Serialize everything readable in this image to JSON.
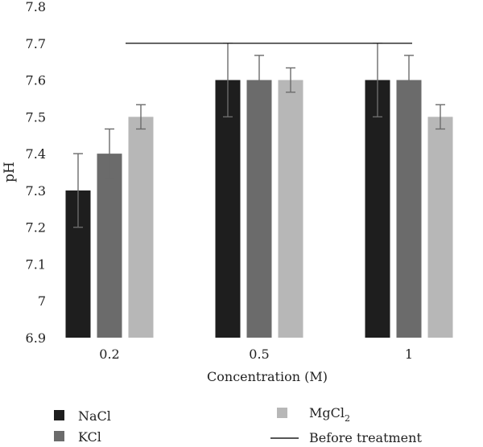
{
  "chart_data": {
    "type": "bar",
    "categories": [
      "0.2",
      "0.5",
      "1"
    ],
    "xlabel": "Concentration (M)",
    "ylabel": "pH",
    "ylim": [
      6.9,
      7.8
    ],
    "yticks": [
      "6.9",
      "7",
      "7.1",
      "7.2",
      "7.3",
      "7.4",
      "7.5",
      "7.6",
      "7.7",
      "7.8"
    ],
    "grid": false,
    "legend_position": "bottom",
    "series": [
      {
        "name": "NaCl",
        "color": "#1e1e1e",
        "values": [
          7.3,
          7.6,
          7.6
        ],
        "errors": [
          0.1,
          0.1,
          0.1
        ]
      },
      {
        "name": "KCl",
        "color": "#6b6b6b",
        "values": [
          7.4,
          7.6,
          7.6
        ],
        "errors": [
          0.067,
          0.067,
          0.067
        ]
      },
      {
        "name": "MgCl2",
        "name_base": "MgCl",
        "name_sub": "2",
        "color": "#b7b7b7",
        "values": [
          7.5,
          7.6,
          7.5
        ],
        "errors": [
          0.033,
          0.033,
          0.033
        ]
      }
    ],
    "reference_line": {
      "name": "Before treatment",
      "value": 7.7,
      "color": "#1e1e1e"
    },
    "error_bar_color": "#6b6b6b"
  }
}
